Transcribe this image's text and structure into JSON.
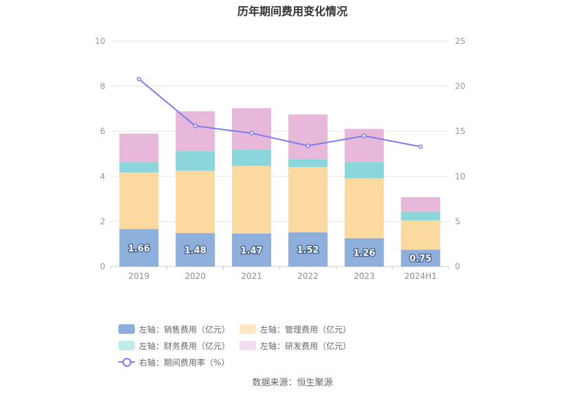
{
  "chart_data": {
    "type": "bar",
    "title": "历年期间费用变化情况",
    "categories": [
      "2019",
      "2020",
      "2021",
      "2022",
      "2023",
      "2024H1"
    ],
    "left_axis": {
      "ylim": [
        0,
        10
      ],
      "ticks": [
        "0",
        "2",
        "4",
        "6",
        "8",
        "10"
      ]
    },
    "right_axis": {
      "ylim": [
        0,
        25
      ],
      "ticks": [
        "0",
        "5",
        "10",
        "15",
        "20",
        "25"
      ]
    },
    "series": [
      {
        "name": "左轴：销售费用（亿元）",
        "axis": "left",
        "stack": true,
        "color": "#8eaedb",
        "values": [
          1.66,
          1.48,
          1.47,
          1.52,
          1.26,
          0.75
        ],
        "labels": [
          "1.66",
          "1.48",
          "1.47",
          "1.52",
          "1.26",
          "0.75"
        ]
      },
      {
        "name": "左轴：管理费用（亿元）",
        "axis": "left",
        "stack": true,
        "color": "#fcd99e",
        "values": [
          2.52,
          2.77,
          3.0,
          2.9,
          2.65,
          1.3
        ]
      },
      {
        "name": "左轴：财务费用（亿元）",
        "axis": "left",
        "stack": true,
        "color": "#8ad6da",
        "values": [
          0.45,
          0.88,
          0.72,
          0.36,
          0.73,
          0.38
        ]
      },
      {
        "name": "左轴：研发费用（亿元）",
        "axis": "left",
        "stack": true,
        "color": "#e8b8da",
        "values": [
          1.27,
          1.76,
          1.84,
          1.97,
          1.47,
          0.65
        ]
      },
      {
        "name": "右轴：期间费用率（%）",
        "axis": "right",
        "type": "line",
        "color": "#7b7bef",
        "values": [
          20.8,
          15.6,
          14.8,
          13.4,
          14.5,
          13.3
        ]
      }
    ],
    "legend": [
      {
        "label": "左轴：销售费用（亿元）",
        "color": "#8eaedb",
        "kind": "box"
      },
      {
        "label": "左轴：管理费用（亿元）",
        "color": "#fde6c1",
        "kind": "box"
      },
      {
        "label": "左轴：财务费用（亿元）",
        "color": "#c0ecec",
        "kind": "box"
      },
      {
        "label": "左轴：研发费用（亿元）",
        "color": "#f3dcee",
        "kind": "box"
      },
      {
        "label": "右轴：期间费用率（%）",
        "color": "#7b7bef",
        "kind": "line"
      }
    ]
  },
  "source": "数据来源：恒生聚源"
}
